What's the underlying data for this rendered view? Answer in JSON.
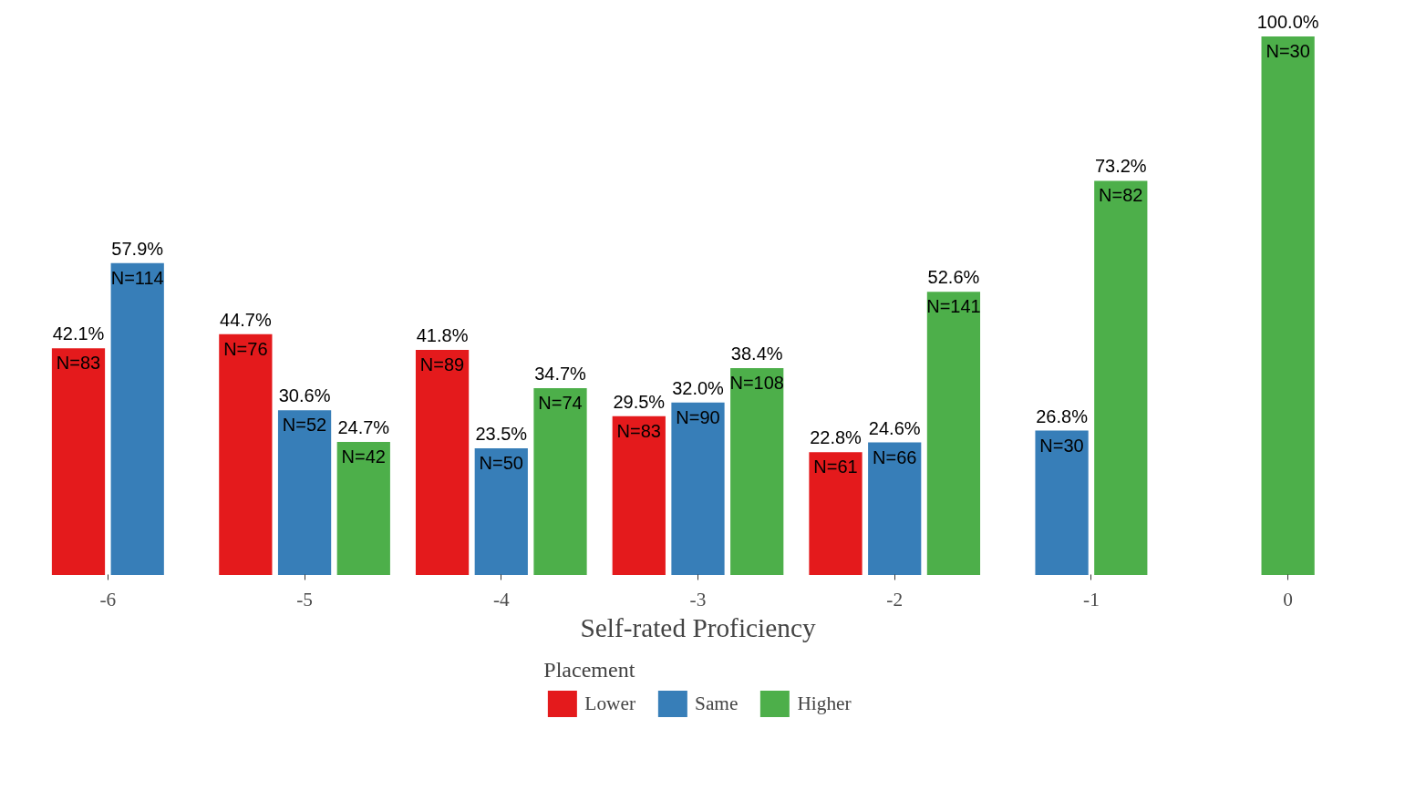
{
  "chart_data": {
    "type": "bar",
    "xlabel": "Self-rated Proficiency",
    "legend_title": "Placement",
    "legend": "bottom",
    "grid": false,
    "categories": [
      "-6",
      "-5",
      "-4",
      "-3",
      "-2",
      "-1",
      "0"
    ],
    "series": [
      {
        "name": "Lower",
        "color": "#e41a1c",
        "values": [
          42.1,
          44.7,
          41.8,
          29.5,
          22.8,
          null,
          null
        ],
        "value_labels": [
          "42.1%\nN=83",
          "44.7%\nN=76",
          "41.8%\nN=89",
          "29.5%\nN=83",
          "22.8%\nN=61",
          null,
          null
        ]
      },
      {
        "name": "Same",
        "color": "#377eb8",
        "values": [
          57.9,
          30.6,
          23.5,
          32.0,
          24.6,
          26.8,
          null
        ],
        "value_labels": [
          "57.9%\nN=114",
          "30.6%\nN=52",
          "23.5%\nN=50",
          "32.0%\nN=90",
          "24.6%\nN=66",
          "26.8%\nN=30",
          null
        ]
      },
      {
        "name": "Higher",
        "color": "#4daf4a",
        "values": [
          null,
          24.7,
          34.7,
          38.4,
          52.6,
          73.2,
          100.0
        ],
        "value_labels": [
          null,
          "24.7%\nN=42",
          "34.7%\nN=74",
          "38.4%\nN=108",
          "52.6%\nN=141",
          "73.2%\nN=82",
          "100.0%\nN=30"
        ]
      }
    ]
  }
}
